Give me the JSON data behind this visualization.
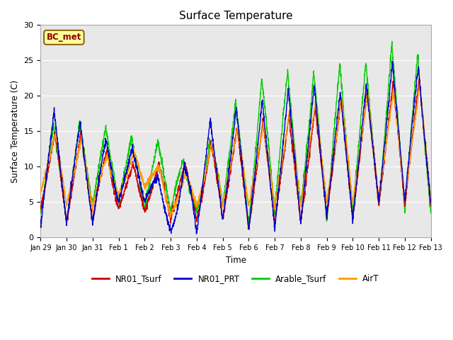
{
  "title": "Surface Temperature",
  "xlabel": "Time",
  "ylabel": "Surface Temperature (C)",
  "ylim": [
    0,
    30
  ],
  "annotation": "BC_met",
  "background_color": "#e8e8e8",
  "grid_color": "#ffffff",
  "series_colors": {
    "NR01_Tsurf": "#cc0000",
    "NR01_PRT": "#0000cc",
    "Arable_Tsurf": "#00cc00",
    "AirT": "#ff9900"
  },
  "tick_labels": [
    "Jan 29",
    "Jan 30",
    "Jan 31",
    "Feb 1",
    "Feb 2",
    "Feb 3",
    "Feb 4",
    "Feb 5",
    "Feb 6",
    "Feb 7",
    "Feb 8",
    "Feb 9",
    "Feb 10",
    "Feb 11",
    "Feb 12",
    "Feb 13"
  ],
  "tick_positions": [
    0,
    1,
    2,
    3,
    4,
    5,
    6,
    7,
    8,
    9,
    10,
    11,
    12,
    13,
    14,
    15
  ],
  "yticks": [
    0,
    5,
    10,
    15,
    20,
    25,
    30
  ]
}
